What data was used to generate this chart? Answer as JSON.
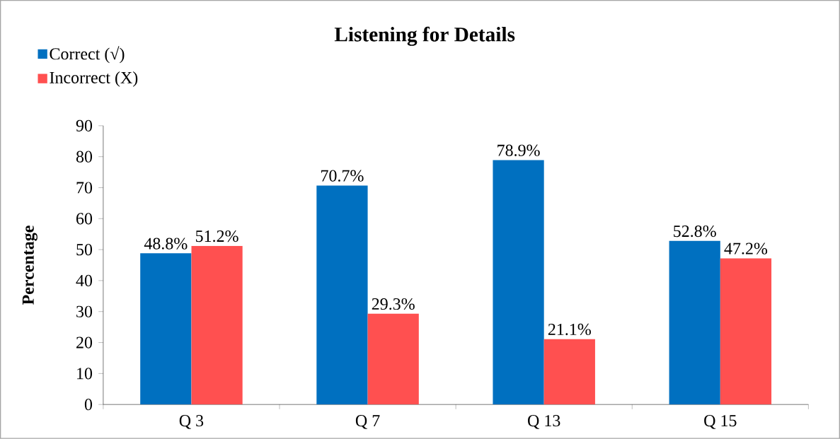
{
  "chart_data": {
    "type": "bar",
    "title": "Listening for Details",
    "ylabel": "Percentage",
    "categories": [
      "Q 3",
      "Q 7",
      "Q 13",
      "Q 15"
    ],
    "series": [
      {
        "name": "Correct (√)",
        "color": "#0070c0",
        "values": [
          48.8,
          70.7,
          78.9,
          52.8
        ],
        "value_labels": [
          "48.8%",
          "70.7%",
          "78.9%",
          "52.8%"
        ]
      },
      {
        "name": "Incorrect (X)",
        "color": "#ff5050",
        "values": [
          51.2,
          29.3,
          21.1,
          47.2
        ],
        "value_labels": [
          "51.2%",
          "29.3%",
          "21.1%",
          "47.2%"
        ]
      }
    ],
    "ylim": [
      0,
      90
    ],
    "yticks": [
      0,
      10,
      20,
      30,
      40,
      50,
      60,
      70,
      80,
      90
    ],
    "legend": "top left",
    "grid": false
  }
}
